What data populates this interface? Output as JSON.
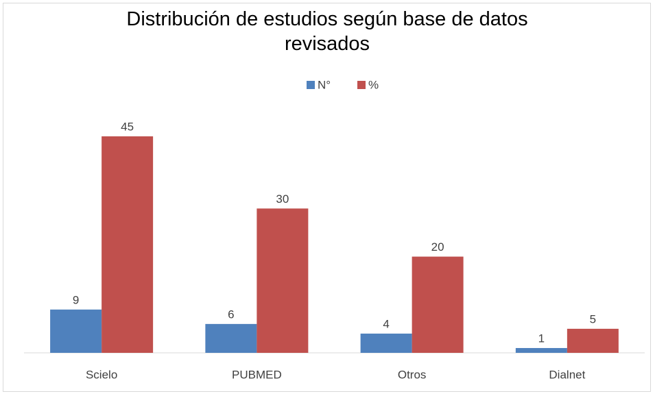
{
  "chart_data": {
    "type": "bar",
    "title": "Distribución de estudios según base de datos revisados",
    "categories": [
      "Scielo",
      "PUBMED",
      "Otros",
      "Dialnet"
    ],
    "series": [
      {
        "name": "N°",
        "color": "#4f81bd",
        "values": [
          9,
          6,
          4,
          1
        ]
      },
      {
        "name": "%",
        "color": "#c0504d",
        "values": [
          45,
          30,
          20,
          5
        ]
      }
    ],
    "legend": "top"
  }
}
